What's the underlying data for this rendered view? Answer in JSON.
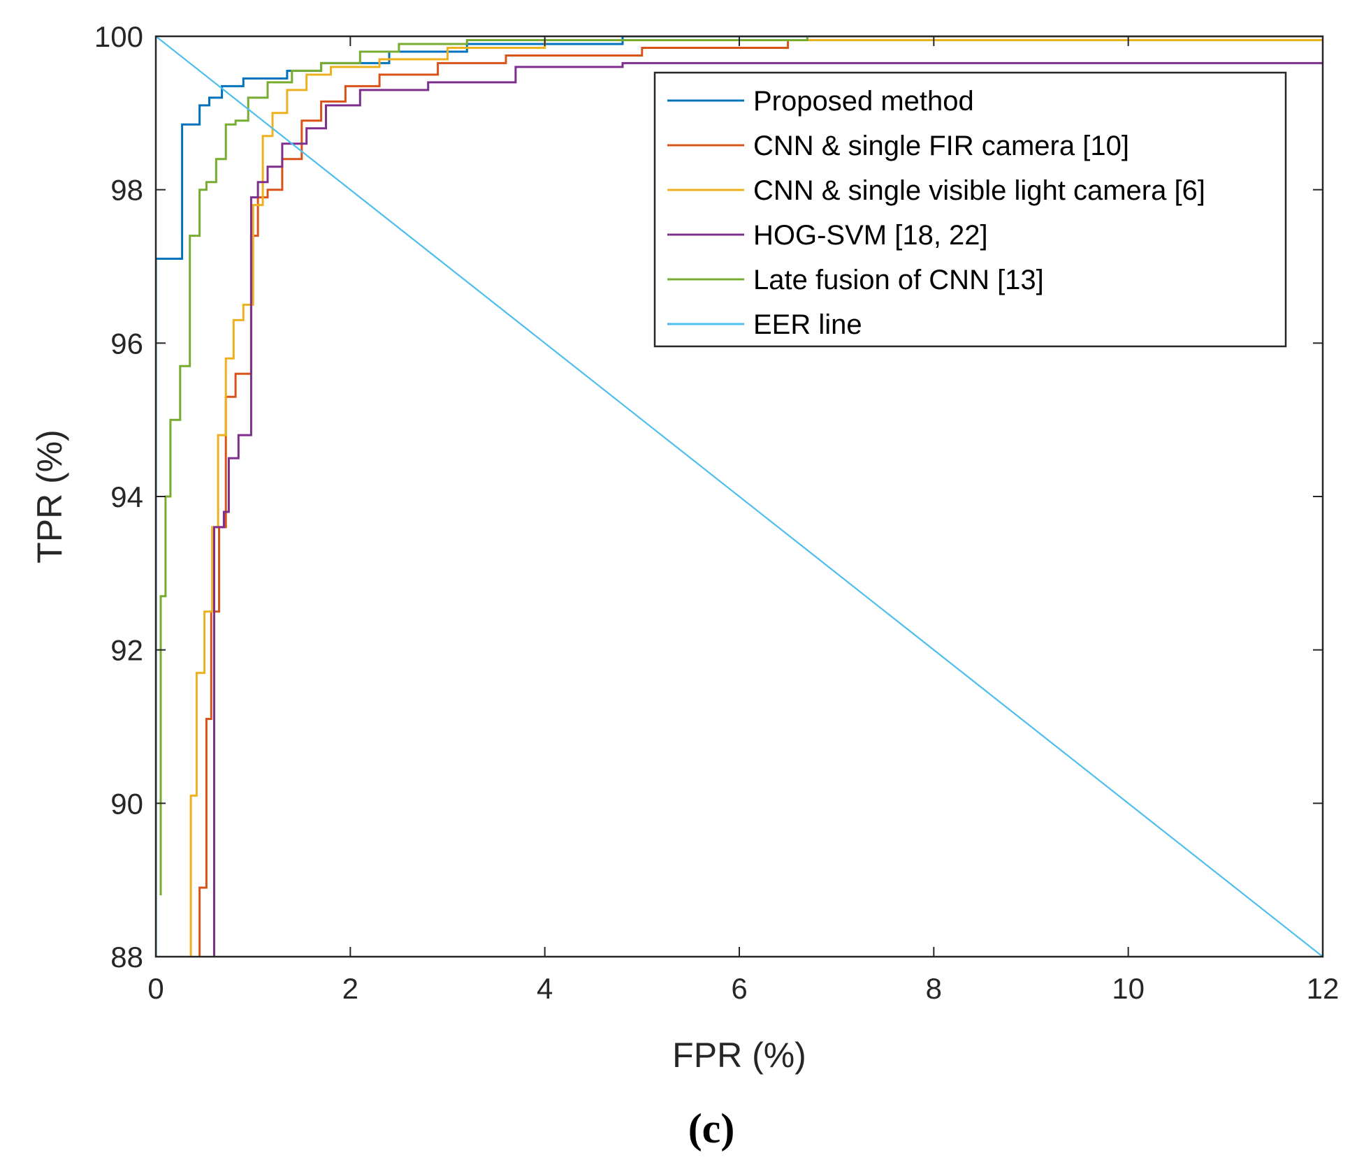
{
  "chart_data": {
    "type": "line",
    "title": "",
    "xlabel": "FPR (%)",
    "ylabel": "TPR (%)",
    "xlim": [
      0,
      12
    ],
    "ylim": [
      88,
      100
    ],
    "xticks": [
      0,
      2,
      4,
      6,
      8,
      10,
      12
    ],
    "yticks": [
      88,
      90,
      92,
      94,
      96,
      98,
      100
    ],
    "legend_position": "top-right",
    "caption": "(c)",
    "series": [
      {
        "name": "Proposed method",
        "color": "#0072BD",
        "x": [
          0,
          0,
          0.27,
          0.27,
          0.45,
          0.45,
          0.55,
          0.55,
          0.68,
          0.68,
          0.9,
          0.9,
          1.35,
          1.35,
          1.7,
          1.7,
          2.4,
          2.4,
          3.2,
          3.2,
          4.8,
          4.8,
          12
        ],
        "y": [
          88,
          97.1,
          97.1,
          98.85,
          98.85,
          99.1,
          99.1,
          99.2,
          99.2,
          99.35,
          99.35,
          99.45,
          99.45,
          99.55,
          99.55,
          99.65,
          99.65,
          99.8,
          99.8,
          99.9,
          99.9,
          100,
          100
        ]
      },
      {
        "name": "CNN & single FIR camera [10]",
        "color": "#D95319",
        "x": [
          0.45,
          0.45,
          0.52,
          0.52,
          0.57,
          0.57,
          0.65,
          0.65,
          0.72,
          0.72,
          0.82,
          0.82,
          0.98,
          0.98,
          1.05,
          1.05,
          1.15,
          1.15,
          1.3,
          1.3,
          1.5,
          1.5,
          1.7,
          1.7,
          1.95,
          1.95,
          2.3,
          2.3,
          2.9,
          2.9,
          3.6,
          3.6,
          5,
          5,
          6.5,
          6.5,
          8.1
        ],
        "y": [
          88,
          88.9,
          88.9,
          91.1,
          91.1,
          92.5,
          92.5,
          93.6,
          93.6,
          95.3,
          95.3,
          95.6,
          95.6,
          97.4,
          97.4,
          97.9,
          97.9,
          98.0,
          98.0,
          98.4,
          98.4,
          98.9,
          98.9,
          99.15,
          99.15,
          99.35,
          99.35,
          99.5,
          99.5,
          99.65,
          99.65,
          99.75,
          99.75,
          99.85,
          99.85,
          99.95,
          99.95
        ]
      },
      {
        "name": "CNN & single visible light camera [6]",
        "color": "#EDB120",
        "x": [
          0.36,
          0.36,
          0.42,
          0.42,
          0.5,
          0.5,
          0.58,
          0.58,
          0.64,
          0.64,
          0.72,
          0.72,
          0.8,
          0.8,
          0.9,
          0.9,
          1.0,
          1.0,
          1.1,
          1.1,
          1.2,
          1.2,
          1.35,
          1.35,
          1.55,
          1.55,
          1.8,
          1.8,
          2.3,
          2.3,
          3.0,
          3.0,
          4.0,
          4.0,
          12
        ],
        "y": [
          88,
          90.1,
          90.1,
          91.7,
          91.7,
          92.5,
          92.5,
          93.6,
          93.6,
          94.8,
          94.8,
          95.8,
          95.8,
          96.3,
          96.3,
          96.5,
          96.5,
          97.8,
          97.8,
          98.7,
          98.7,
          99.0,
          99.0,
          99.3,
          99.3,
          99.5,
          99.5,
          99.6,
          99.6,
          99.7,
          99.7,
          99.85,
          99.85,
          99.95,
          99.95
        ]
      },
      {
        "name": "HOG-SVM [18, 22]",
        "color": "#7E2F8E",
        "x": [
          0.6,
          0.6,
          0.7,
          0.7,
          0.75,
          0.75,
          0.85,
          0.85,
          0.98,
          0.98,
          1.05,
          1.05,
          1.15,
          1.15,
          1.3,
          1.3,
          1.55,
          1.55,
          1.75,
          1.75,
          2.1,
          2.1,
          2.8,
          2.8,
          3.7,
          3.7,
          4.8,
          4.8,
          12
        ],
        "y": [
          88,
          93.6,
          93.6,
          93.8,
          93.8,
          94.5,
          94.5,
          94.8,
          94.8,
          97.9,
          97.9,
          98.1,
          98.1,
          98.3,
          98.3,
          98.6,
          98.6,
          98.8,
          98.8,
          99.1,
          99.1,
          99.3,
          99.3,
          99.4,
          99.4,
          99.6,
          99.6,
          99.65,
          99.65
        ]
      },
      {
        "name": "Late fusion of CNN [13]",
        "color": "#77AC30",
        "x": [
          0.05,
          0.05,
          0.1,
          0.1,
          0.15,
          0.15,
          0.25,
          0.25,
          0.35,
          0.35,
          0.45,
          0.45,
          0.52,
          0.52,
          0.62,
          0.62,
          0.72,
          0.72,
          0.82,
          0.82,
          0.95,
          0.95,
          1.15,
          1.15,
          1.4,
          1.4,
          1.7,
          1.7,
          2.1,
          2.1,
          2.5,
          2.5,
          3.2,
          3.2,
          6.7,
          6.7,
          12
        ],
        "y": [
          88.8,
          92.7,
          92.7,
          94.0,
          94.0,
          95.0,
          95.0,
          95.7,
          95.7,
          97.4,
          97.4,
          98.0,
          98.0,
          98.1,
          98.1,
          98.4,
          98.4,
          98.85,
          98.85,
          98.9,
          98.9,
          99.2,
          99.2,
          99.4,
          99.4,
          99.55,
          99.55,
          99.65,
          99.65,
          99.8,
          99.8,
          99.9,
          99.9,
          99.95,
          99.95,
          100,
          100
        ]
      },
      {
        "name": "EER line",
        "color": "#4DBEEE",
        "x": [
          0,
          12
        ],
        "y": [
          100,
          88
        ]
      }
    ]
  }
}
